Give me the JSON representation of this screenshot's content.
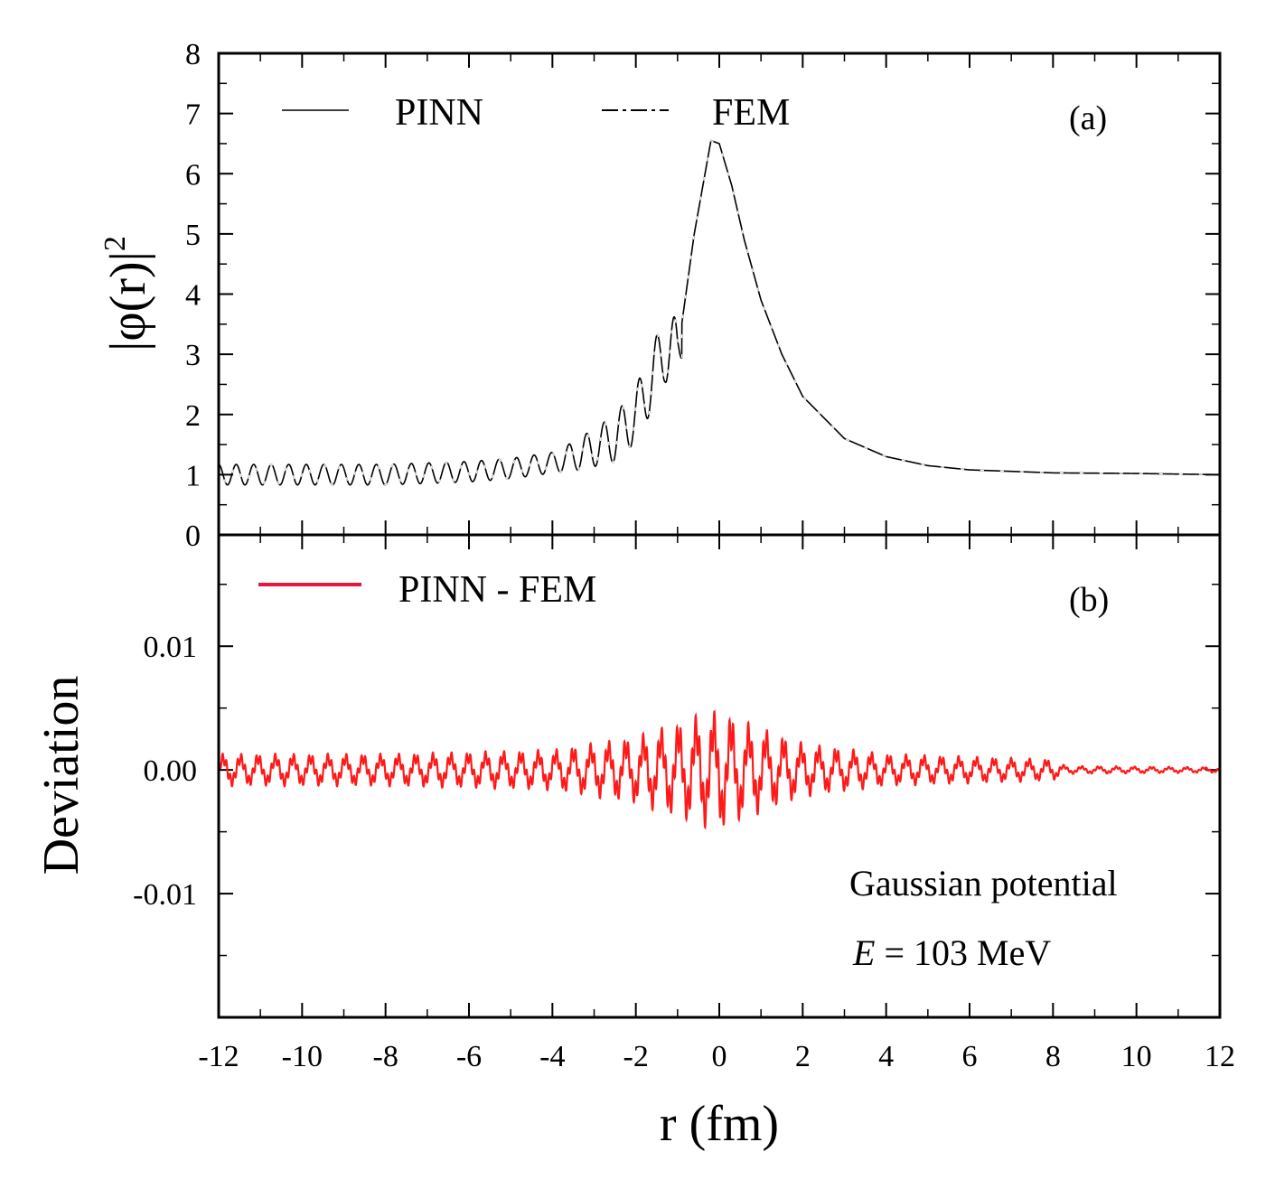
{
  "chart_data": [
    {
      "panel": "(a)",
      "type": "line",
      "ylabel": "|φ(r)|²",
      "xlim": [
        -12,
        12
      ],
      "ylim": [
        0,
        8
      ],
      "yticks": [
        "0",
        "1",
        "2",
        "3",
        "4",
        "5",
        "6",
        "7",
        "8"
      ],
      "grid": false,
      "legend_position": "top",
      "legend": [
        {
          "name": "PINN",
          "style": "solid",
          "color": "#000000"
        },
        {
          "name": "FEM",
          "style": "dashed",
          "color": "#000000"
        }
      ],
      "series": [
        {
          "name": "PINN",
          "x": [
            -12,
            -10,
            -8,
            -6,
            -5,
            -4,
            -3.5,
            -3,
            -2.5,
            -2,
            -1.8,
            -1.3,
            -1.0,
            -0.6,
            -0.2,
            0,
            0.3,
            0.6,
            1,
            1.5,
            2,
            3,
            4,
            5,
            6,
            8,
            10,
            12
          ],
          "y": [
            1.0,
            1.0,
            1.0,
            1.05,
            1.1,
            1.2,
            1.3,
            1.45,
            1.6,
            2.0,
            2.3,
            3.1,
            3.0,
            5.0,
            6.55,
            6.5,
            5.8,
            4.9,
            3.9,
            3.0,
            2.3,
            1.6,
            1.3,
            1.15,
            1.08,
            1.03,
            1.02,
            1.0
          ],
          "oscillation": {
            "period_fm": 0.42,
            "amplitude_far_left": 0.17
          }
        },
        {
          "name": "FEM",
          "x": [
            -12,
            -10,
            -8,
            -6,
            -5,
            -4,
            -3.5,
            -3,
            -2.5,
            -2,
            -1.8,
            -1.3,
            -1.0,
            -0.6,
            -0.2,
            0,
            0.3,
            0.6,
            1,
            1.5,
            2,
            3,
            4,
            5,
            6,
            8,
            10,
            12
          ],
          "y": [
            1.0,
            1.0,
            1.0,
            1.05,
            1.1,
            1.2,
            1.3,
            1.45,
            1.6,
            2.0,
            2.3,
            3.1,
            3.0,
            5.0,
            6.55,
            6.5,
            5.8,
            4.9,
            3.9,
            3.0,
            2.3,
            1.6,
            1.3,
            1.15,
            1.08,
            1.03,
            1.02,
            1.0
          ]
        }
      ]
    },
    {
      "panel": "(b)",
      "type": "line",
      "xlabel": "r (fm)",
      "ylabel": "Deviation",
      "xlim": [
        -12,
        12
      ],
      "ylim": [
        -0.02,
        0.019
      ],
      "xticks": [
        "-12",
        "-10",
        "-8",
        "-6",
        "-4",
        "-2",
        "0",
        "2",
        "4",
        "6",
        "8",
        "10",
        "12"
      ],
      "yticks": [
        "-0.01",
        "0.00",
        "0.01"
      ],
      "grid": false,
      "legend_position": "top-left",
      "legend": [
        {
          "name": "PINN - FEM",
          "style": "solid",
          "color": "#ff1a1a"
        }
      ],
      "annotations": [
        "Gaussian potential",
        "E = 103 MeV"
      ],
      "series": [
        {
          "name": "PINN - FEM",
          "color": "#ff1a1a",
          "envelope_x": [
            -12,
            -8,
            -4,
            -2,
            -0.6,
            0,
            0.7,
            2,
            4,
            8,
            8.3,
            12
          ],
          "envelope_amplitude": [
            0.0012,
            0.0012,
            0.0015,
            0.0025,
            0.004,
            0.0045,
            0.0035,
            0.002,
            0.0012,
            0.0008,
            0.0003,
            0.0002
          ]
        }
      ]
    }
  ],
  "panel_labels": {
    "a": "(a)",
    "b": "(b)"
  },
  "legend_a": {
    "pinn": "PINN",
    "fem": "FEM"
  },
  "legend_b": {
    "diff": "PINN - FEM"
  },
  "annotation": {
    "line1": "Gaussian potential",
    "line2_var": "E",
    "line2_rest": " = 103 MeV"
  },
  "axes": {
    "ylabel_a": "|φ(r)|",
    "ylabel_a_sup": "2",
    "ylabel_b": "Deviation",
    "xlabel": "r (fm)"
  }
}
